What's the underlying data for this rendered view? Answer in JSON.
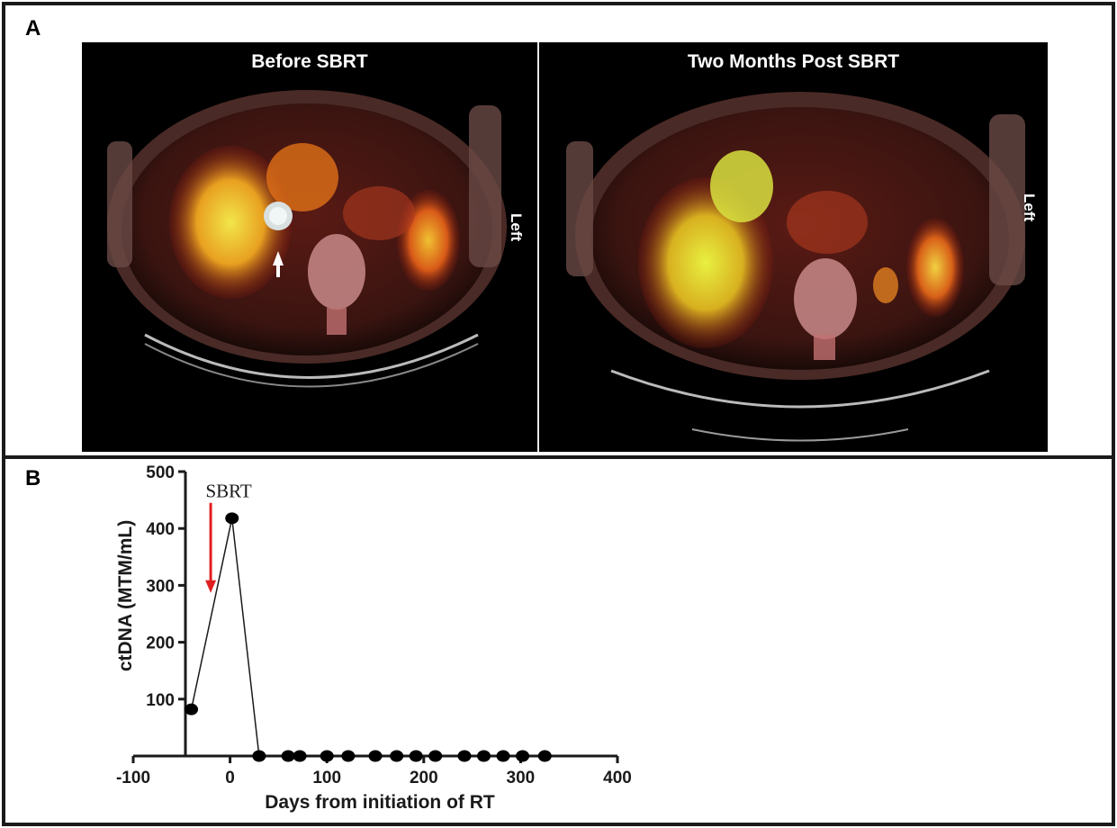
{
  "panels": {
    "a": {
      "letter": "A",
      "left_title": "Before SBRT",
      "right_title": "Two Months Post SBRT",
      "left_side_label": "Left",
      "right_side_label": "Left"
    },
    "b": {
      "letter": "B"
    }
  },
  "chart_data": {
    "type": "line",
    "xlabel": "Days from initiation of RT",
    "ylabel": "ctDNA (MTM/mL)",
    "xlim": [
      -100,
      400
    ],
    "ylim": [
      0,
      500
    ],
    "xticks": [
      -100,
      0,
      100,
      200,
      300,
      400
    ],
    "yticks": [
      100,
      200,
      300,
      400,
      500
    ],
    "series": [
      {
        "x": [
          -40,
          2,
          30,
          60,
          72,
          100,
          122,
          150,
          172,
          192,
          212,
          242,
          262,
          282,
          302,
          325
        ],
        "y": [
          82,
          418,
          0,
          0,
          0,
          0,
          0,
          0,
          0,
          0,
          0,
          0,
          0,
          0,
          0,
          0
        ]
      }
    ],
    "annotations": [
      {
        "text": "SBRT",
        "x": -20,
        "arrow_from_y": 335,
        "arrow_to_y": 290,
        "color": "#e02020"
      }
    ],
    "colors": {
      "line": "#1a1a1a",
      "marker": "#000000",
      "arrow": "#e02020"
    }
  }
}
